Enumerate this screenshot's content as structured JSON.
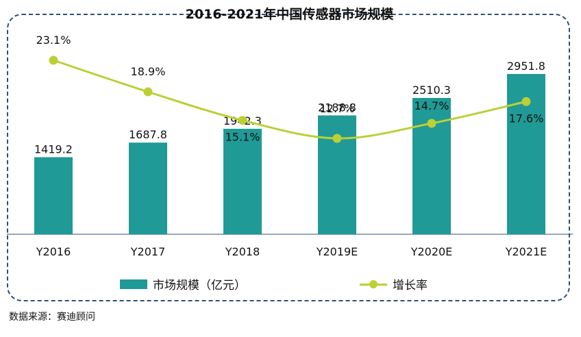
{
  "chart_data": {
    "type": "bar",
    "title": "2016-2021年中国传感器市场规模",
    "categories": [
      "Y2016",
      "Y2017",
      "Y2018",
      "Y2019E",
      "Y2020E",
      "Y2021E"
    ],
    "series": [
      {
        "name": "市场规模（亿元）",
        "type": "bar",
        "values": [
          1419.2,
          1687.8,
          1942.3,
          2188.8,
          2510.3,
          2951.8
        ],
        "color": "#1f9a96"
      },
      {
        "name": "增长率",
        "type": "line",
        "values": [
          "23.1%",
          "18.9%",
          "15.1%",
          "12.7%",
          "14.7%",
          "17.6%"
        ],
        "color": "#bccf35"
      }
    ],
    "source": "数据来源：赛迪顾问"
  }
}
